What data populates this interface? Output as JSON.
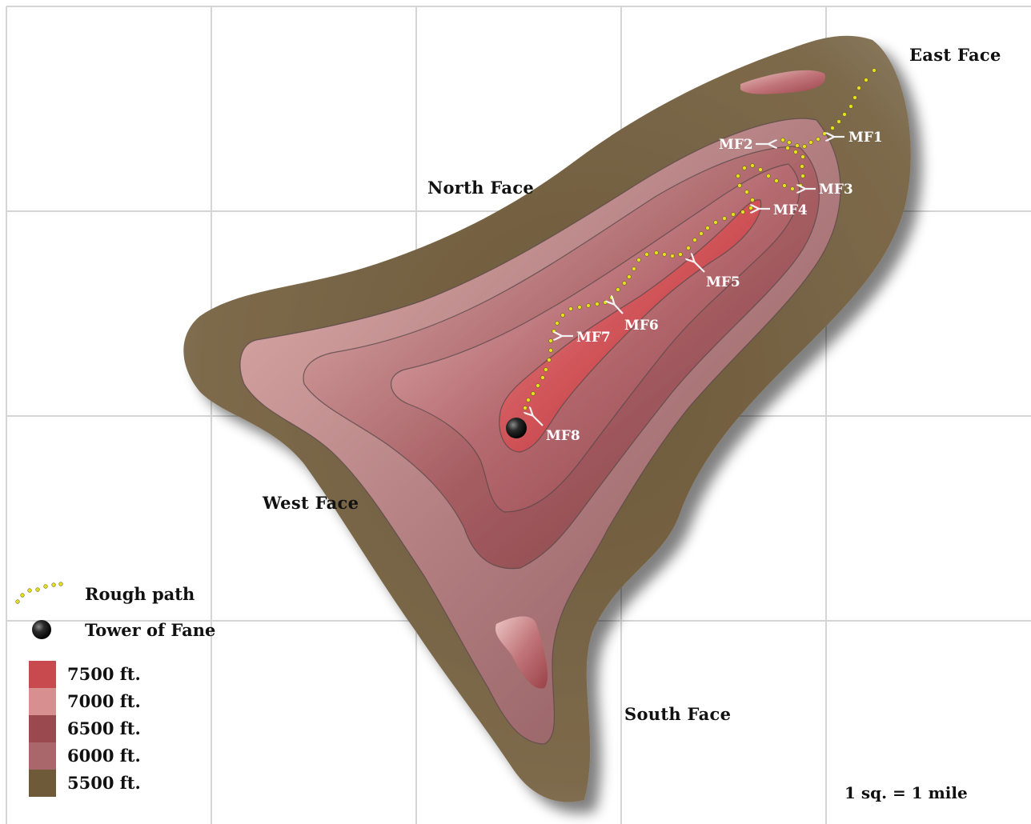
{
  "faces": {
    "north": "North Face",
    "east": "East Face",
    "west": "West Face",
    "south": "South Face"
  },
  "waypoints": [
    {
      "id": "mf1",
      "label": "MF1"
    },
    {
      "id": "mf2",
      "label": "MF2"
    },
    {
      "id": "mf3",
      "label": "MF3"
    },
    {
      "id": "mf4",
      "label": "MF4"
    },
    {
      "id": "mf5",
      "label": "MF5"
    },
    {
      "id": "mf6",
      "label": "MF6"
    },
    {
      "id": "mf7",
      "label": "MF7"
    },
    {
      "id": "mf8",
      "label": "MF8"
    }
  ],
  "legend": {
    "path_label": "Rough path",
    "tower_label": "Tower of Fane",
    "elevations": [
      {
        "label": "7500 ft.",
        "color": "#c94a4e"
      },
      {
        "label": "7000 ft.",
        "color": "#d88f90"
      },
      {
        "label": "6500 ft.",
        "color": "#9a4a4e"
      },
      {
        "label": "6000 ft.",
        "color": "#a9676b"
      },
      {
        "label": "5500 ft.",
        "color": "#6e5a38"
      }
    ]
  },
  "scale": "1 sq. = 1 mile",
  "colors": {
    "path": "#e8e020",
    "tower": "#1a1a1a",
    "grid": "#d4d4d4"
  }
}
